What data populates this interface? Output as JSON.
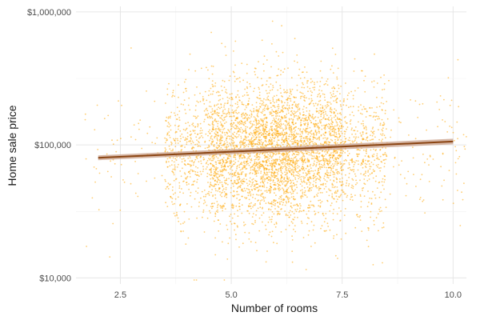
{
  "chart_data": {
    "type": "scatter",
    "xlabel": "Number of rooms",
    "ylabel": "Home sale price",
    "y_scale": "log10",
    "xlim": [
      1.5,
      10.3
    ],
    "ylim": [
      9000,
      1100000
    ],
    "x_ticks": [
      2.5,
      5.0,
      7.5,
      10.0
    ],
    "x_tick_labels": [
      "2.5",
      "5.0",
      "7.5",
      "10.0"
    ],
    "y_ticks": [
      10000,
      100000,
      1000000
    ],
    "y_tick_labels": [
      "$10,000",
      "$100,000",
      "$1,000,000"
    ],
    "grid": true,
    "point_color": "#FFA500",
    "point_opacity": 0.55,
    "trend_color": "#8B4513",
    "band_color": "#C9A08A",
    "point_clusters": [
      {
        "x_min": 1.7,
        "x_max": 3.5,
        "count": 60
      },
      {
        "x_min": 3.5,
        "x_max": 4.5,
        "count": 450
      },
      {
        "x_min": 4.5,
        "x_max": 5.5,
        "count": 1100
      },
      {
        "x_min": 5.5,
        "x_max": 6.5,
        "count": 1500
      },
      {
        "x_min": 6.5,
        "x_max": 7.5,
        "count": 1100
      },
      {
        "x_min": 7.5,
        "x_max": 8.5,
        "count": 450
      },
      {
        "x_min": 8.5,
        "x_max": 10.3,
        "count": 90
      }
    ],
    "y_median": 90000,
    "trend_line": {
      "x": [
        2.0,
        10.0
      ],
      "y": [
        80000,
        106000
      ]
    }
  }
}
